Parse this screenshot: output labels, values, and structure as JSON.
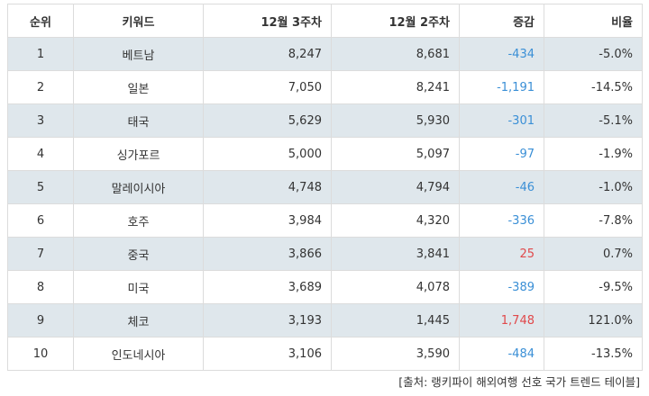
{
  "table": {
    "headers": {
      "rank": "순위",
      "keyword": "키워드",
      "week3": "12월 3주차",
      "week2": "12월 2주차",
      "change": "증감",
      "ratio": "비율"
    },
    "rows": [
      {
        "rank": "1",
        "keyword": "베트남",
        "week3": "8,247",
        "week2": "8,681",
        "change": "-434",
        "ratio": "-5.0%"
      },
      {
        "rank": "2",
        "keyword": "일본",
        "week3": "7,050",
        "week2": "8,241",
        "change": "-1,191",
        "ratio": "-14.5%"
      },
      {
        "rank": "3",
        "keyword": "태국",
        "week3": "5,629",
        "week2": "5,930",
        "change": "-301",
        "ratio": "-5.1%"
      },
      {
        "rank": "4",
        "keyword": "싱가포르",
        "week3": "5,000",
        "week2": "5,097",
        "change": "-97",
        "ratio": "-1.9%"
      },
      {
        "rank": "5",
        "keyword": "말레이시아",
        "week3": "4,748",
        "week2": "4,794",
        "change": "-46",
        "ratio": "-1.0%"
      },
      {
        "rank": "6",
        "keyword": "호주",
        "week3": "3,984",
        "week2": "4,320",
        "change": "-336",
        "ratio": "-7.8%"
      },
      {
        "rank": "7",
        "keyword": "중국",
        "week3": "3,866",
        "week2": "3,841",
        "change": "25",
        "ratio": "0.7%"
      },
      {
        "rank": "8",
        "keyword": "미국",
        "week3": "3,689",
        "week2": "4,078",
        "change": "-389",
        "ratio": "-9.5%"
      },
      {
        "rank": "9",
        "keyword": "체코",
        "week3": "3,193",
        "week2": "1,445",
        "change": "1,748",
        "ratio": "121.0%"
      },
      {
        "rank": "10",
        "keyword": "인도네시아",
        "week3": "3,106",
        "week2": "3,590",
        "change": "-484",
        "ratio": "-13.5%"
      }
    ]
  },
  "colors": {
    "negative_change": "#3a8fd6",
    "positive_change": "#e0494b",
    "striped_row": "#dfe7ec"
  },
  "source": "[출처: 랭키파이 해외여행 선호 국가 트렌드 테이블]"
}
